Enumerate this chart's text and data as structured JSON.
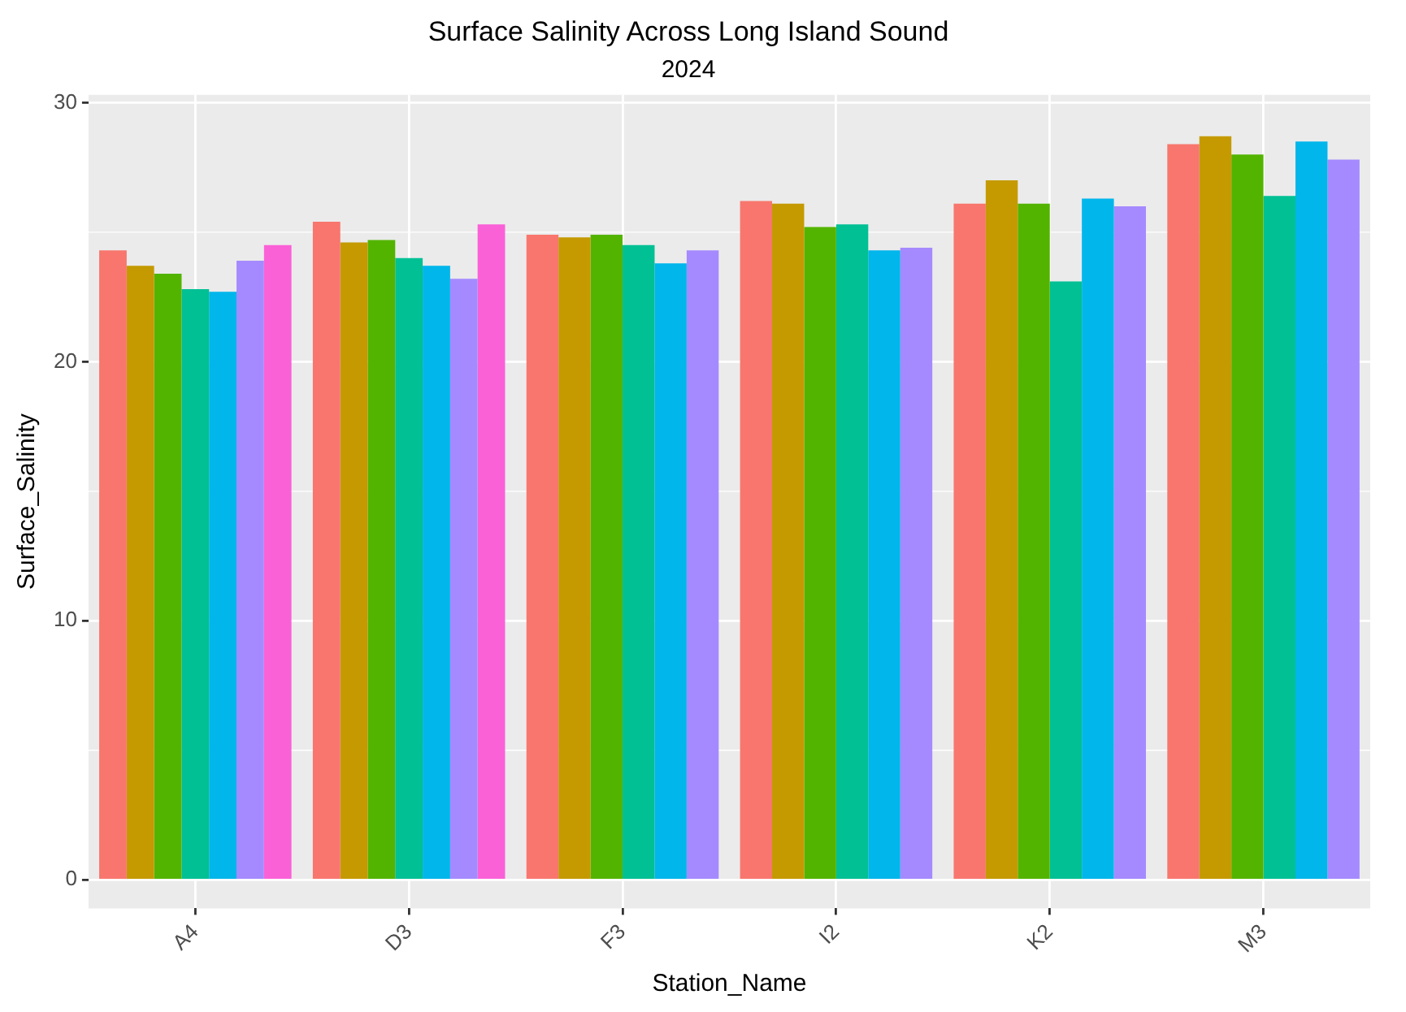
{
  "chart_data": {
    "type": "bar",
    "title": "Surface Salinity Across Long Island Sound",
    "subtitle": "2024",
    "xlabel": "Station_Name",
    "ylabel": "Surface_Salinity",
    "categories": [
      "A4",
      "D3",
      "F3",
      "I2",
      "K2",
      "M3"
    ],
    "series": [
      {
        "color": "#f8766d",
        "values": [
          24.3,
          25.4,
          24.9,
          26.2,
          26.1,
          28.4
        ]
      },
      {
        "color": "#c49a00",
        "values": [
          23.7,
          24.6,
          24.8,
          26.1,
          27.0,
          28.7
        ]
      },
      {
        "color": "#53b400",
        "values": [
          23.4,
          24.7,
          24.9,
          25.2,
          26.1,
          28.0
        ]
      },
      {
        "color": "#00c094",
        "values": [
          22.8,
          24.0,
          24.5,
          25.3,
          23.1,
          26.4
        ]
      },
      {
        "color": "#00b6eb",
        "values": [
          22.7,
          23.7,
          23.8,
          24.3,
          26.3,
          28.5
        ]
      },
      {
        "color": "#a58aff",
        "values": [
          23.9,
          23.2,
          24.3,
          24.4,
          26.0,
          27.8
        ]
      },
      {
        "color": "#fb61d7",
        "values": [
          24.5,
          25.3,
          null,
          null,
          null,
          null
        ]
      }
    ],
    "ylim": [
      -1.1,
      30.3
    ],
    "yticks": [
      0,
      10,
      20,
      30
    ],
    "grid": true,
    "legend": false
  }
}
